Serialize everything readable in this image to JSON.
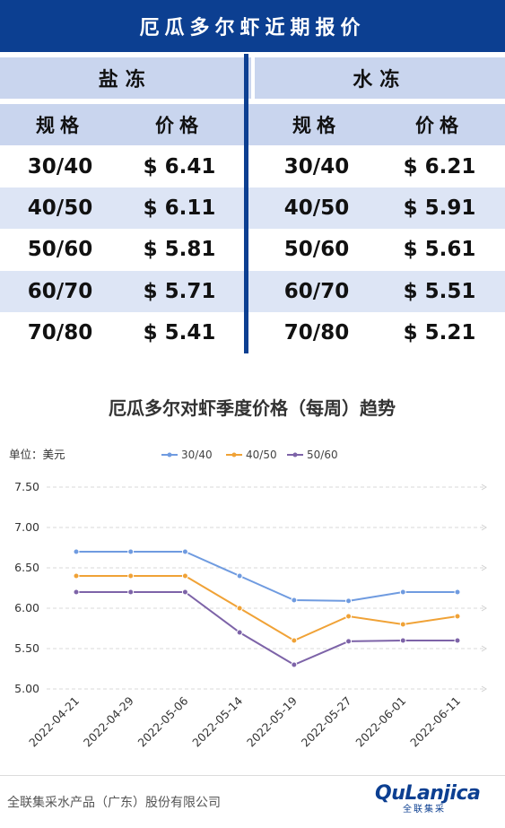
{
  "title": "厄瓜多尔虾近期报价",
  "sections": [
    "盐冻",
    "水冻"
  ],
  "table": {
    "headers": [
      "规格",
      "价格",
      "规格",
      "价格"
    ],
    "rows": [
      [
        "30/40",
        "$ 6.41",
        "30/40",
        "$ 6.21"
      ],
      [
        "40/50",
        "$ 6.11",
        "40/50",
        "$ 5.91"
      ],
      [
        "50/60",
        "$ 5.81",
        "50/60",
        "$ 5.61"
      ],
      [
        "60/70",
        "$ 5.71",
        "60/70",
        "$ 5.51"
      ],
      [
        "70/80",
        "$ 5.41",
        "70/80",
        "$ 5.21"
      ]
    ]
  },
  "chart_data": {
    "type": "line",
    "title": "厄瓜多尔对虾季度价格（每周）趋势",
    "unit_label": "单位：美元",
    "x": [
      "2022-04-21",
      "2022-04-29",
      "2022-05-06",
      "2022-05-14",
      "2022-05-19",
      "2022-05-27",
      "2022-06-01",
      "2022-06-11"
    ],
    "yticks": [
      "7.50",
      "7.00",
      "6.50",
      "6.00",
      "5.50",
      "5.00"
    ],
    "ylim": [
      5.0,
      7.5
    ],
    "grid": true,
    "legend_position": "top",
    "series": [
      {
        "name": "30/40",
        "color": "#6f9be0",
        "values": [
          6.7,
          6.7,
          6.7,
          6.4,
          6.1,
          6.09,
          6.2,
          6.2
        ]
      },
      {
        "name": "40/50",
        "color": "#f0a236",
        "values": [
          6.4,
          6.4,
          6.4,
          6.0,
          5.6,
          5.9,
          5.8,
          5.9
        ]
      },
      {
        "name": "50/60",
        "color": "#7d63a8",
        "values": [
          6.2,
          6.2,
          6.2,
          5.7,
          5.3,
          5.59,
          5.6,
          5.6
        ]
      }
    ]
  },
  "footer": {
    "company": "全联集采水产品（广东）股份有限公司",
    "logo_main": "QuLanjica",
    "logo_sub": "全联集采"
  }
}
